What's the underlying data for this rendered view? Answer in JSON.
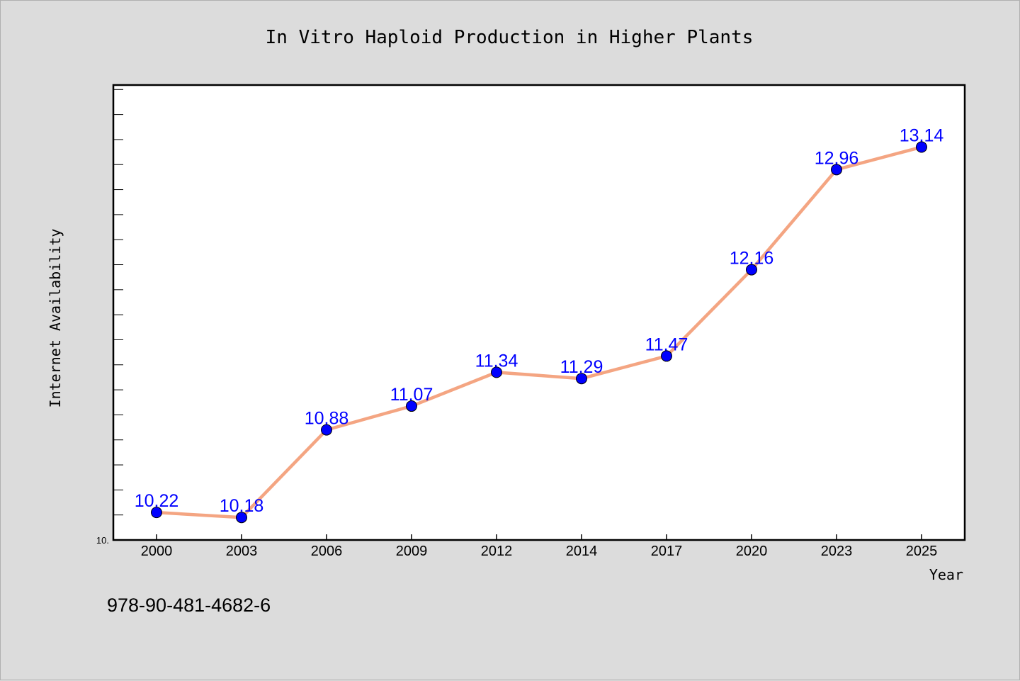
{
  "chart_data": {
    "type": "line",
    "title": "In Vitro Haploid Production in Higher Plants",
    "xlabel": "Year",
    "ylabel": "Internet Availability",
    "categories": [
      "2000",
      "2003",
      "2006",
      "2009",
      "2012",
      "2014",
      "2017",
      "2020",
      "2023",
      "2025"
    ],
    "series": [
      {
        "values": [
          10.22,
          10.18,
          10.88,
          11.07,
          11.34,
          11.29,
          11.47,
          12.16,
          12.96,
          13.14
        ]
      }
    ],
    "data_labels": [
      "10.22",
      "10.18",
      "10.88",
      "11.07",
      "11.34",
      "11.29",
      "11.47",
      "12.16",
      "12.96",
      "13.14"
    ],
    "ylim": [
      10.0,
      13.6
    ],
    "y_tick_label": "10.",
    "grid": false,
    "line_color": "#f4a582",
    "marker_color": "#0000ff",
    "label_color": "#0000ff"
  },
  "footer": {
    "isbn": "978-90-481-4682-6"
  }
}
